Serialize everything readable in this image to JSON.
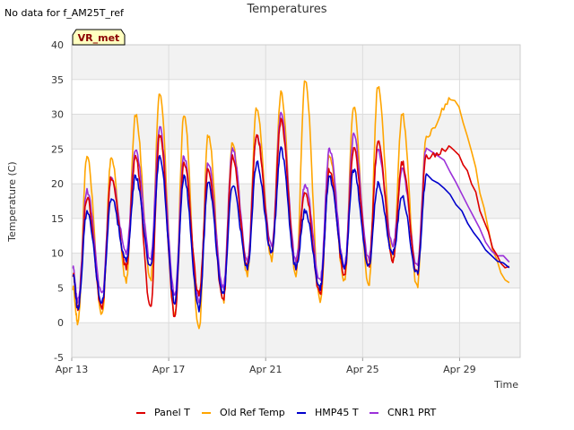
{
  "notice": "No data for f_AM25T_ref",
  "badge": "VR_met",
  "chart_data": {
    "type": "line",
    "title": "Temperatures",
    "xlabel": "Time",
    "ylabel": "Temperature (C)",
    "ylim": [
      -5,
      40
    ],
    "yticks": [
      -5,
      0,
      5,
      10,
      15,
      20,
      25,
      30,
      35,
      40
    ],
    "xlim": [
      0,
      18.5
    ],
    "xticks": [
      {
        "value": 0,
        "label": "Apr 13"
      },
      {
        "value": 4,
        "label": "Apr 17"
      },
      {
        "value": 8,
        "label": "Apr 21"
      },
      {
        "value": 12,
        "label": "Apr 25"
      },
      {
        "value": 16,
        "label": "Apr 29"
      }
    ],
    "grid": true,
    "legend": "bottom",
    "series": [
      {
        "name": "Panel T",
        "color": "#dd0000",
        "minima": [
          2,
          2,
          8,
          2,
          1,
          4,
          3,
          8,
          10,
          8,
          4,
          7,
          8,
          9,
          7
        ],
        "maxima": [
          18,
          21,
          24,
          27,
          23,
          22,
          24,
          27,
          29,
          19,
          22,
          25,
          26,
          23,
          24,
          25
        ]
      },
      {
        "name": "Old Ref Temp",
        "color": "#ffa500",
        "minima": [
          0,
          1,
          6,
          6,
          1,
          -1,
          3,
          7,
          9,
          7,
          3,
          6,
          5,
          9,
          5
        ],
        "maxima": [
          24,
          24,
          30,
          33,
          30,
          27,
          26,
          31,
          33,
          35,
          24,
          31,
          34,
          30,
          27,
          32
        ]
      },
      {
        "name": "HMP45 T",
        "color": "#0000cc",
        "minima": [
          2,
          3,
          9,
          8,
          3,
          2,
          4,
          8,
          10,
          8,
          5,
          8,
          8,
          10,
          7
        ],
        "maxima": [
          16,
          18,
          21,
          24,
          21,
          20,
          20,
          23,
          25,
          16,
          21,
          22,
          20,
          18,
          21
        ]
      },
      {
        "name": "CNR1 PRT",
        "color": "#9b30d9",
        "minima": [
          3,
          4,
          10,
          9,
          4,
          3,
          5,
          9,
          11,
          9,
          6,
          8,
          9,
          11,
          8
        ],
        "maxima": [
          19,
          21,
          25,
          28,
          24,
          23,
          25,
          27,
          30,
          20,
          25,
          27,
          25,
          22,
          25
        ]
      }
    ]
  }
}
